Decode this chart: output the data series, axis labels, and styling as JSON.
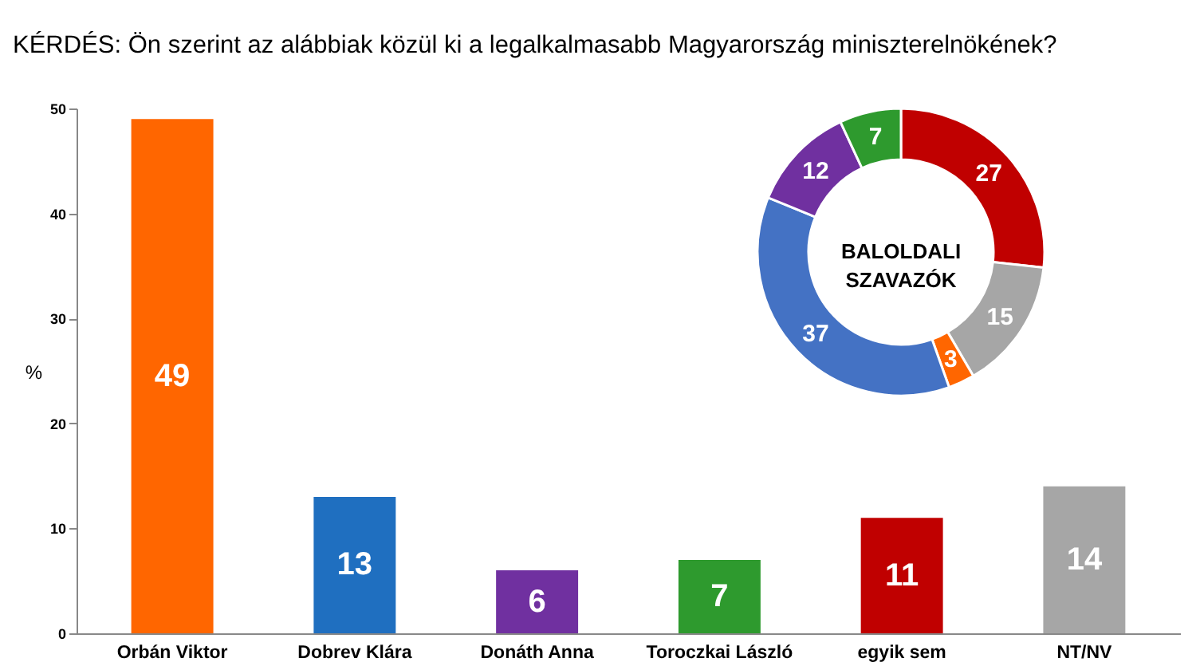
{
  "chart_data": [
    {
      "type": "bar",
      "title": "KÉRDÉS: Ön szerint az alábbiak közül ki a legalkalmasabb Magyarország miniszterelnökének?",
      "ylabel": "%",
      "categories": [
        "Orbán Viktor",
        "Dobrev Klára",
        "Donáth Anna",
        "Toroczkai László",
        "egyik sem",
        "NT/NV"
      ],
      "values": [
        49,
        13,
        6,
        7,
        11,
        14
      ],
      "colors": [
        "#ff6600",
        "#1f6fc0",
        "#7030a0",
        "#2e9a2e",
        "#c00000",
        "#a6a6a6"
      ],
      "ylim": [
        0,
        50
      ],
      "yticks": [
        0,
        10,
        20,
        30,
        40,
        50
      ],
      "grid": false,
      "legend": false,
      "data_labels": true
    },
    {
      "type": "donut",
      "title": "BALOLDALI SZAVAZÓK",
      "categories": [
        null,
        null,
        null,
        null,
        null,
        null
      ],
      "values": [
        27,
        15,
        3,
        37,
        12,
        7
      ],
      "colors": [
        "#c00000",
        "#a6a6a6",
        "#ff6600",
        "#4472c4",
        "#7030a0",
        "#2e9a2e"
      ],
      "legend": false,
      "data_labels": true
    }
  ]
}
